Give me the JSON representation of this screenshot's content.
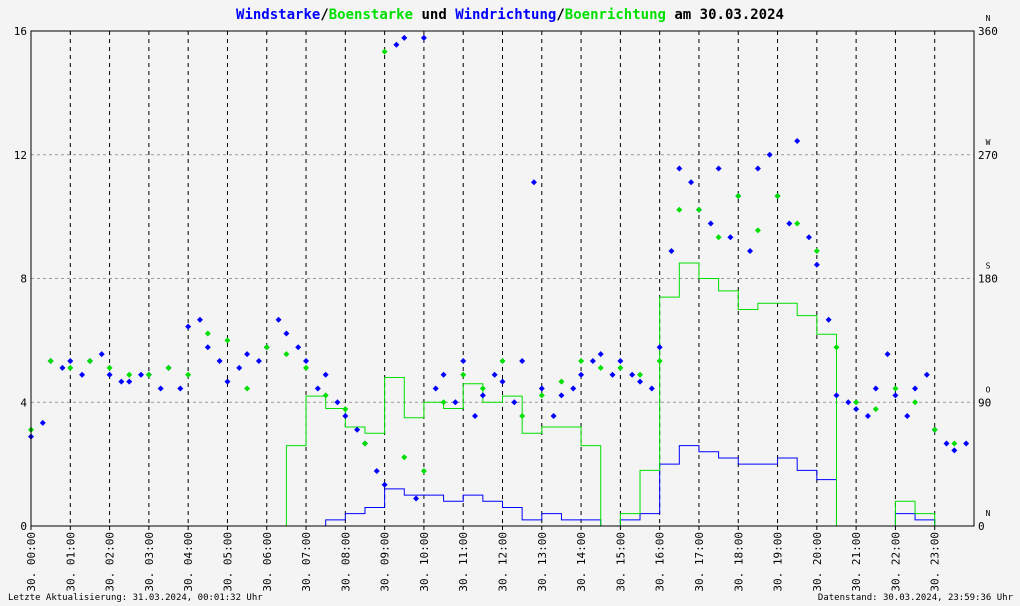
{
  "colors": {
    "wind": "#0000ff",
    "gust": "#00e000",
    "grid": "#999999",
    "bg": "#f4f4f4"
  },
  "footer": {
    "left": "Letzte Aktualisierung: 31.03.2024, 00:01:32 Uhr",
    "right": "Datenstand: 30.03.2024, 23:59:36 Uhr"
  },
  "chart_data": {
    "type": "line",
    "title_parts": [
      {
        "text": "Windstarke",
        "role": "wind"
      },
      {
        "text": "/",
        "role": "plain"
      },
      {
        "text": "Boenstarke",
        "role": "gust"
      },
      {
        "text": " und ",
        "role": "plain"
      },
      {
        "text": "Windrichtung",
        "role": "wind"
      },
      {
        "text": "/",
        "role": "plain"
      },
      {
        "text": "Boenrichtung",
        "role": "gust"
      },
      {
        "text": " am 30.03.2024",
        "role": "plain"
      }
    ],
    "x_range_hours": [
      0,
      24
    ],
    "x_ticks": [
      "30. 00:00",
      "30. 01:00",
      "30. 02:00",
      "30. 03:00",
      "30. 04:00",
      "30. 05:00",
      "30. 06:00",
      "30. 07:00",
      "30. 08:00",
      "30. 09:00",
      "30. 10:00",
      "30. 11:00",
      "30. 12:00",
      "30. 13:00",
      "30. 14:00",
      "30. 15:00",
      "30. 16:00",
      "30. 17:00",
      "30. 18:00",
      "30. 19:00",
      "30. 20:00",
      "30. 21:00",
      "30. 22:00",
      "30. 23:00"
    ],
    "y_left": {
      "range": [
        0,
        16
      ],
      "ticks": [
        "0",
        "4",
        "8",
        "12",
        "16"
      ]
    },
    "y_right": {
      "range": [
        0,
        360
      ],
      "ticks": [
        "0",
        "90",
        "180",
        "270",
        "360"
      ],
      "dir_labels": [
        "N",
        "O",
        "S",
        "W",
        "N"
      ]
    },
    "grid": true,
    "series": [
      {
        "name": "Windstarke",
        "kind": "line",
        "color": "#0000ff",
        "hours": [
          0,
          0.5,
          1,
          1.5,
          2,
          2.5,
          3,
          3.5,
          4,
          4.5,
          5,
          5.5,
          6,
          6.5,
          7,
          7.5,
          8,
          8.5,
          9,
          9.5,
          10,
          10.5,
          11,
          11.5,
          12,
          12.5,
          13,
          13.5,
          14,
          14.5,
          15,
          15.5,
          16,
          16.5,
          17,
          17.5,
          18,
          18.5,
          19,
          19.5,
          20,
          20.5,
          21,
          21.5,
          22,
          22.5,
          23,
          23.5,
          24
        ],
        "values": [
          0,
          0,
          0,
          0,
          0,
          0,
          0,
          0,
          0,
          0,
          0,
          0,
          0,
          0,
          0,
          0.2,
          0.4,
          0.6,
          1.2,
          1.0,
          1.0,
          0.8,
          1.0,
          0.8,
          0.6,
          0.2,
          0.4,
          0.2,
          0.2,
          0,
          0.2,
          0.4,
          2.0,
          2.6,
          2.4,
          2.2,
          2.0,
          2.0,
          2.2,
          1.8,
          1.5,
          0,
          0,
          0,
          0.4,
          0.2,
          0,
          0,
          0
        ]
      },
      {
        "name": "Boenstarke",
        "kind": "line",
        "color": "#00e000",
        "hours": [
          0,
          0.5,
          1,
          1.5,
          2,
          2.5,
          3,
          3.5,
          4,
          4.5,
          5,
          5.5,
          6,
          6.5,
          7,
          7.5,
          8,
          8.5,
          9,
          9.5,
          10,
          10.5,
          11,
          11.5,
          12,
          12.5,
          13,
          13.5,
          14,
          14.5,
          15,
          15.5,
          16,
          16.5,
          17,
          17.5,
          18,
          18.5,
          19,
          19.5,
          20,
          20.5,
          21,
          21.5,
          22,
          22.5,
          23,
          23.5,
          24
        ],
        "values": [
          0,
          0,
          0,
          0,
          0,
          0,
          0,
          0,
          0,
          0,
          0,
          0,
          0,
          2.6,
          4.2,
          3.8,
          3.2,
          3.0,
          4.8,
          3.5,
          4.0,
          3.8,
          4.6,
          4.0,
          4.2,
          3.0,
          3.2,
          3.2,
          2.6,
          0,
          0.4,
          1.8,
          7.4,
          8.5,
          8.0,
          7.6,
          7.0,
          7.2,
          7.2,
          6.8,
          6.2,
          0,
          0,
          0,
          0.8,
          0.4,
          0,
          0,
          0
        ]
      },
      {
        "name": "Windrichtung",
        "kind": "scatter",
        "color": "#0000ff",
        "hours": [
          0,
          0.3,
          0.5,
          0.8,
          1,
          1.3,
          1.5,
          1.8,
          2,
          2.3,
          2.5,
          2.8,
          3,
          3.3,
          3.5,
          3.8,
          4,
          4.3,
          4.5,
          4.8,
          5,
          5.3,
          5.5,
          5.8,
          6,
          6.3,
          6.5,
          6.8,
          7,
          7.3,
          7.5,
          7.8,
          8,
          8.3,
          8.5,
          8.8,
          9,
          9.3,
          9.5,
          9.8,
          10,
          10.3,
          10.5,
          10.8,
          11,
          11.3,
          11.5,
          11.8,
          12,
          12.3,
          12.5,
          12.8,
          13,
          13.3,
          13.5,
          13.8,
          14,
          14.3,
          14.5,
          14.8,
          15,
          15.3,
          15.5,
          15.8,
          16,
          16.3,
          16.5,
          16.8,
          17,
          17.3,
          17.5,
          17.8,
          18,
          18.3,
          18.5,
          18.8,
          19,
          19.3,
          19.5,
          19.8,
          20,
          20.3,
          20.5,
          20.8,
          21,
          21.3,
          21.5,
          21.8,
          22,
          22.3,
          22.5,
          22.8,
          23,
          23.3,
          23.5,
          23.8
        ],
        "values": [
          65,
          75,
          120,
          115,
          120,
          110,
          120,
          125,
          110,
          105,
          105,
          110,
          110,
          100,
          115,
          100,
          145,
          150,
          130,
          120,
          105,
          115,
          125,
          120,
          130,
          150,
          140,
          130,
          120,
          100,
          110,
          90,
          80,
          70,
          60,
          40,
          30,
          350,
          355,
          20,
          355,
          100,
          110,
          90,
          120,
          80,
          95,
          110,
          105,
          90,
          120,
          250,
          100,
          80,
          95,
          100,
          110,
          120,
          125,
          110,
          120,
          110,
          105,
          100,
          130,
          200,
          260,
          250,
          230,
          220,
          260,
          210,
          240,
          200,
          260,
          270,
          240,
          220,
          280,
          210,
          190,
          150,
          95,
          90,
          85,
          80,
          100,
          125,
          95,
          80,
          100,
          110,
          70,
          60,
          55,
          60
        ]
      },
      {
        "name": "Boenrichtung",
        "kind": "scatter",
        "color": "#00e000",
        "hours": [
          0,
          0.5,
          1,
          1.5,
          2,
          2.5,
          3,
          3.5,
          4,
          4.5,
          5,
          5.5,
          6,
          6.5,
          7,
          7.5,
          8,
          8.5,
          9,
          9.5,
          10,
          10.5,
          11,
          11.5,
          12,
          12.5,
          13,
          13.5,
          14,
          14.5,
          15,
          15.5,
          16,
          16.5,
          17,
          17.5,
          18,
          18.5,
          19,
          19.5,
          20,
          20.5,
          21,
          21.5,
          22,
          22.5,
          23,
          23.5
        ],
        "values": [
          70,
          120,
          115,
          120,
          115,
          110,
          110,
          115,
          110,
          140,
          135,
          100,
          130,
          125,
          115,
          95,
          85,
          60,
          345,
          50,
          40,
          90,
          110,
          100,
          120,
          80,
          95,
          105,
          120,
          115,
          115,
          110,
          120,
          230,
          230,
          210,
          240,
          215,
          240,
          220,
          200,
          130,
          90,
          85,
          100,
          90,
          70,
          60
        ]
      }
    ]
  }
}
